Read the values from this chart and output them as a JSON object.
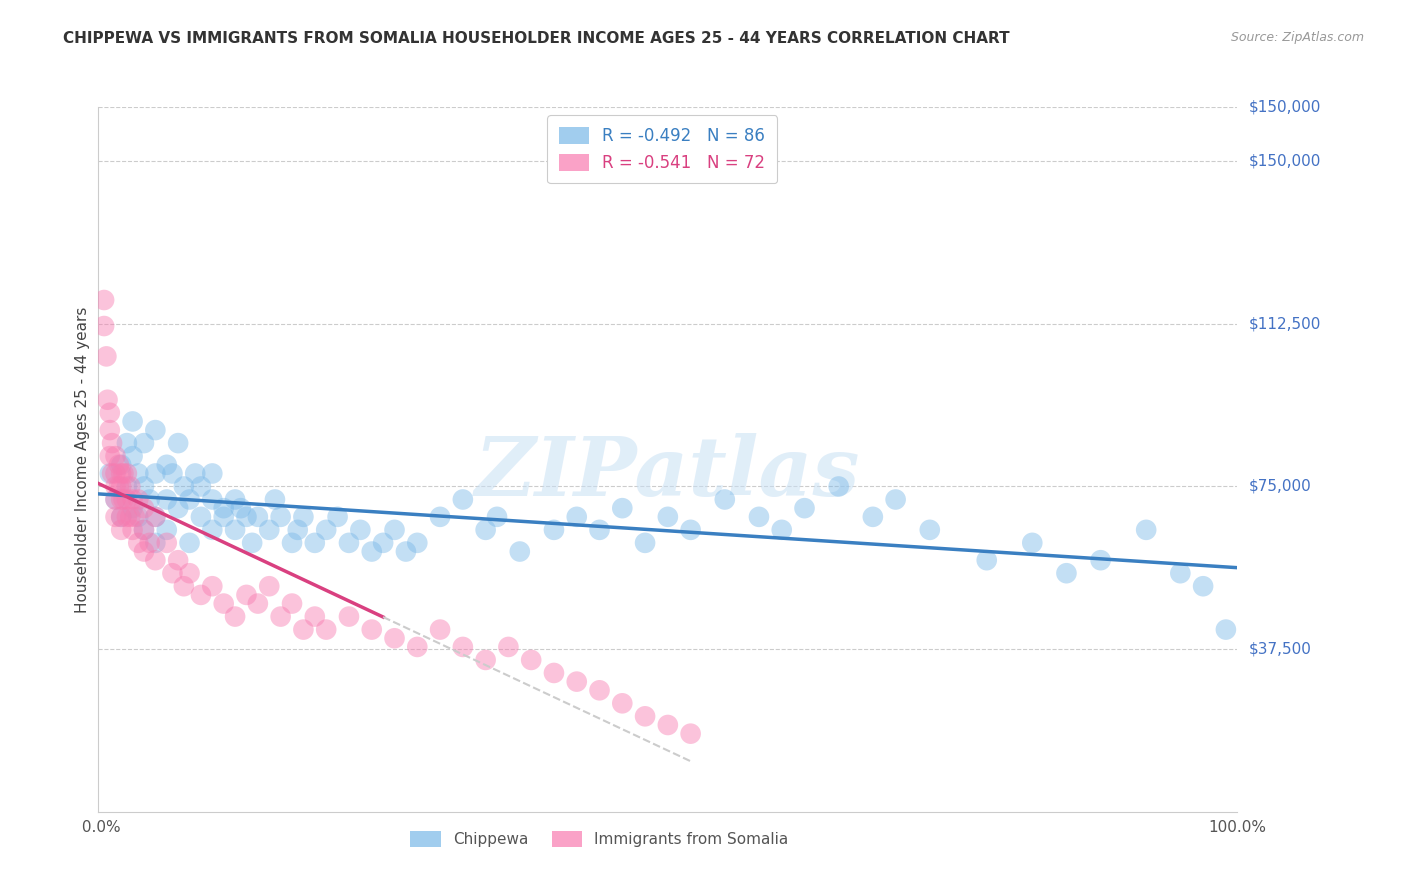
{
  "title": "CHIPPEWA VS IMMIGRANTS FROM SOMALIA HOUSEHOLDER INCOME AGES 25 - 44 YEARS CORRELATION CHART",
  "source": "Source: ZipAtlas.com",
  "ylabel": "Householder Income Ages 25 - 44 years",
  "ytick_labels": [
    "$37,500",
    "$75,000",
    "$112,500",
    "$150,000"
  ],
  "ytick_values": [
    37500,
    75000,
    112500,
    150000
  ],
  "ymin": 0,
  "ymax": 162500,
  "xmin": 0.0,
  "xmax": 1.0,
  "chippewa_color": "#7ab8e8",
  "somalia_color": "#f87bb0",
  "chippewa_line_color": "#3a7fc1",
  "somalia_line_color": "#d94080",
  "somalia_line_dashed_color": "#cccccc",
  "watermark": "ZIPatlas",
  "chippewa_x": [
    0.01,
    0.015,
    0.02,
    0.02,
    0.025,
    0.025,
    0.03,
    0.03,
    0.03,
    0.035,
    0.035,
    0.04,
    0.04,
    0.04,
    0.045,
    0.05,
    0.05,
    0.05,
    0.05,
    0.06,
    0.06,
    0.06,
    0.065,
    0.07,
    0.07,
    0.075,
    0.08,
    0.08,
    0.085,
    0.09,
    0.09,
    0.1,
    0.1,
    0.1,
    0.11,
    0.11,
    0.12,
    0.12,
    0.125,
    0.13,
    0.135,
    0.14,
    0.15,
    0.155,
    0.16,
    0.17,
    0.175,
    0.18,
    0.19,
    0.2,
    0.21,
    0.22,
    0.23,
    0.24,
    0.25,
    0.26,
    0.27,
    0.28,
    0.3,
    0.32,
    0.34,
    0.35,
    0.37,
    0.4,
    0.42,
    0.44,
    0.46,
    0.48,
    0.5,
    0.52,
    0.55,
    0.58,
    0.6,
    0.62,
    0.65,
    0.68,
    0.7,
    0.73,
    0.78,
    0.82,
    0.85,
    0.88,
    0.92,
    0.95,
    0.97,
    0.99
  ],
  "chippewa_y": [
    78000,
    72000,
    80000,
    68000,
    85000,
    75000,
    90000,
    82000,
    70000,
    78000,
    68000,
    85000,
    75000,
    65000,
    72000,
    88000,
    78000,
    68000,
    62000,
    80000,
    72000,
    65000,
    78000,
    85000,
    70000,
    75000,
    72000,
    62000,
    78000,
    68000,
    75000,
    72000,
    65000,
    78000,
    70000,
    68000,
    65000,
    72000,
    70000,
    68000,
    62000,
    68000,
    65000,
    72000,
    68000,
    62000,
    65000,
    68000,
    62000,
    65000,
    68000,
    62000,
    65000,
    60000,
    62000,
    65000,
    60000,
    62000,
    68000,
    72000,
    65000,
    68000,
    60000,
    65000,
    68000,
    65000,
    70000,
    62000,
    68000,
    65000,
    72000,
    68000,
    65000,
    70000,
    75000,
    68000,
    72000,
    65000,
    58000,
    62000,
    55000,
    58000,
    65000,
    55000,
    52000,
    42000
  ],
  "somalia_x": [
    0.005,
    0.005,
    0.007,
    0.008,
    0.01,
    0.01,
    0.01,
    0.012,
    0.012,
    0.015,
    0.015,
    0.015,
    0.015,
    0.015,
    0.018,
    0.018,
    0.02,
    0.02,
    0.02,
    0.02,
    0.02,
    0.022,
    0.022,
    0.025,
    0.025,
    0.025,
    0.028,
    0.028,
    0.03,
    0.03,
    0.032,
    0.035,
    0.035,
    0.04,
    0.04,
    0.04,
    0.045,
    0.05,
    0.05,
    0.06,
    0.065,
    0.07,
    0.075,
    0.08,
    0.09,
    0.1,
    0.11,
    0.12,
    0.13,
    0.14,
    0.15,
    0.16,
    0.17,
    0.18,
    0.19,
    0.2,
    0.22,
    0.24,
    0.26,
    0.28,
    0.3,
    0.32,
    0.34,
    0.36,
    0.38,
    0.4,
    0.42,
    0.44,
    0.46,
    0.48,
    0.5,
    0.52
  ],
  "somalia_y": [
    118000,
    112000,
    105000,
    95000,
    92000,
    88000,
    82000,
    85000,
    78000,
    82000,
    78000,
    75000,
    72000,
    68000,
    80000,
    75000,
    78000,
    75000,
    72000,
    68000,
    65000,
    78000,
    72000,
    78000,
    72000,
    68000,
    75000,
    68000,
    72000,
    65000,
    68000,
    72000,
    62000,
    70000,
    65000,
    60000,
    62000,
    68000,
    58000,
    62000,
    55000,
    58000,
    52000,
    55000,
    50000,
    52000,
    48000,
    45000,
    50000,
    48000,
    52000,
    45000,
    48000,
    42000,
    45000,
    42000,
    45000,
    42000,
    40000,
    38000,
    42000,
    38000,
    35000,
    38000,
    35000,
    32000,
    30000,
    28000,
    25000,
    22000,
    20000,
    18000
  ],
  "chippewa_R": -0.492,
  "chippewa_N": 86,
  "somalia_R": -0.541,
  "somalia_N": 72,
  "legend_chips_label": "R = -0.492   N = 86",
  "legend_soma_label": "R = -0.541   N = 72",
  "bottom_legend_chip": "Chippewa",
  "bottom_legend_soma": "Immigrants from Somalia"
}
